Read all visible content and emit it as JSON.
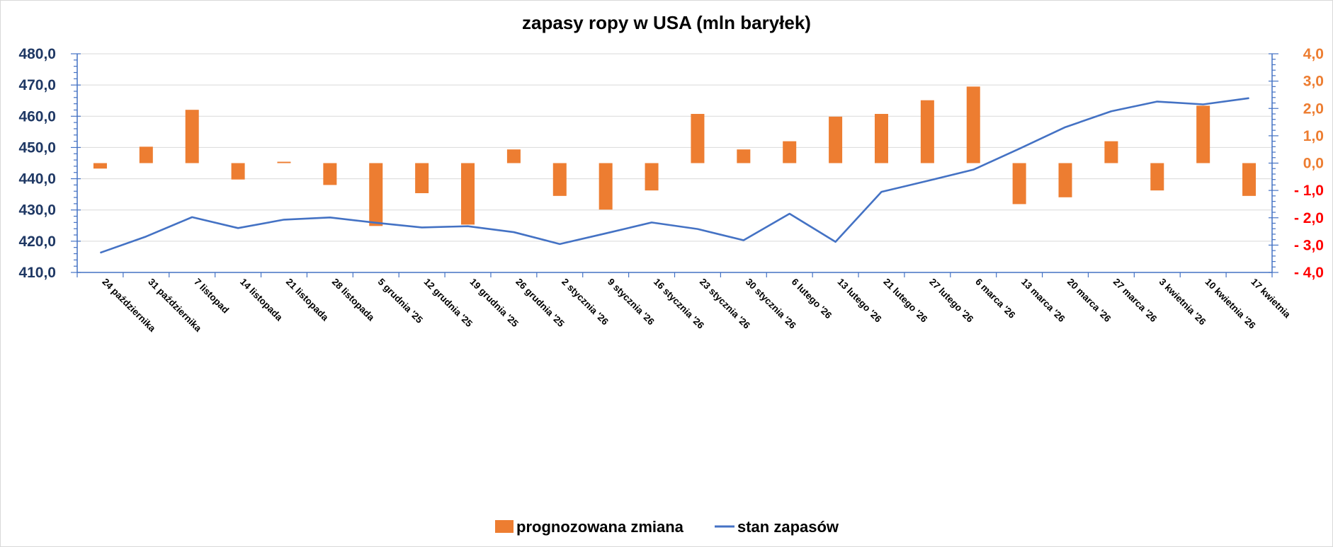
{
  "chart_data": {
    "type": "bar+line",
    "title": "zapasy ropy w USA (mln baryłek)",
    "categories": [
      "24 października",
      "31 października",
      "7 listopad",
      "14 listopada",
      "21 listopada",
      "28 listopada",
      "5 grudnia '25",
      "12 grudnia '25",
      "19 grudnia '25",
      "26 grudnia '25",
      "2 stycznia '26",
      "9 stycznia '26",
      "16 stycznia '26",
      "23 stycznia '26",
      "30 stycznia '26",
      "6 lutego '26",
      "13 lutego '26",
      "21 lutego '26",
      "27 lutego '26",
      "6 marca '26",
      "13 marca '26",
      "20 marca '26",
      "27 marca '26",
      "3 kwietnia '26",
      "10 kwietnia '26",
      "17 kwietnia"
    ],
    "series": [
      {
        "name": "prognozowana zmiana",
        "type": "bar",
        "axis": "right",
        "color": "#ed7d31",
        "values": [
          -0.2,
          0.6,
          1.95,
          -0.6,
          0.05,
          -0.8,
          -2.3,
          -1.1,
          -2.25,
          0.5,
          -1.2,
          -1.7,
          -1.0,
          1.8,
          0.5,
          0.8,
          1.7,
          1.8,
          2.3,
          2.8,
          -1.5,
          -1.25,
          0.8,
          -1.0,
          2.1,
          -1.2
        ]
      },
      {
        "name": "stan zapasów",
        "type": "line",
        "axis": "left",
        "color": "#4472c4",
        "values": [
          416.3,
          421.5,
          427.7,
          424.2,
          426.9,
          427.6,
          425.9,
          424.4,
          424.8,
          422.9,
          419.1,
          422.5,
          426.0,
          423.9,
          420.3,
          428.8,
          419.8,
          435.8,
          439.3,
          442.9,
          449.6,
          456.5,
          461.6,
          464.7,
          463.8,
          465.8
        ]
      }
    ],
    "y_left": {
      "range": [
        410,
        480
      ],
      "ticks": [
        "480,0",
        "470,0",
        "460,0",
        "450,0",
        "440,0",
        "430,0",
        "420,0",
        "410,0"
      ]
    },
    "y_right": {
      "range": [
        -4,
        4
      ],
      "ticks": [
        "4,0",
        "3,0",
        "2,0",
        "1,0",
        "0,0",
        "- 1,0",
        "- 2,0",
        "- 3,0",
        "- 4,0"
      ]
    },
    "grid": true,
    "legend": {
      "placement": "bottom",
      "items": [
        "prognozowana zmiana",
        "stan zapasów"
      ]
    }
  }
}
